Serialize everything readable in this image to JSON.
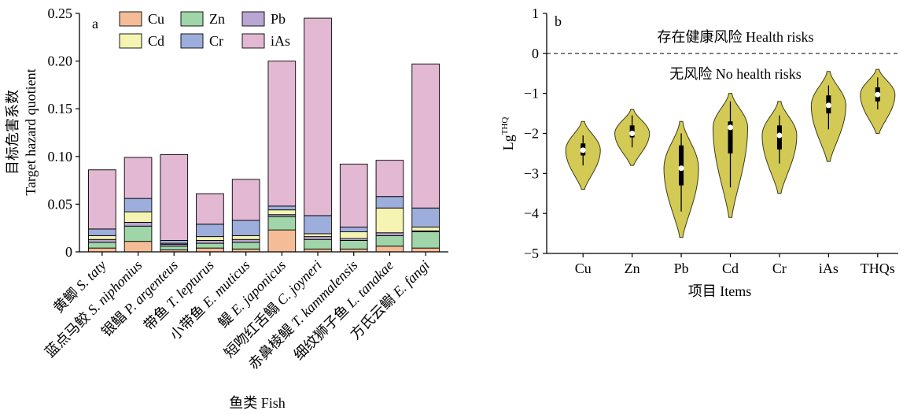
{
  "chart_data": [
    {
      "panel_label": "a",
      "type": "bar",
      "stacked": true,
      "ylabel_cn": "目标危害系数",
      "ylabel_en": "Target hazard quotient",
      "xlabel": "鱼类 Fish",
      "ylim": [
        0,
        0.25
      ],
      "yticks": [
        "0",
        "0.05",
        "0.10",
        "0.15",
        "0.20",
        "0.25"
      ],
      "ytick_values": [
        0,
        0.05,
        0.1,
        0.15,
        0.2,
        0.25
      ],
      "categories": [
        {
          "cn": "黄鲫",
          "sci": "S. taty"
        },
        {
          "cn": "蓝点马鲛",
          "sci": "S. niphonius"
        },
        {
          "cn": "银鲳",
          "sci": "P. argenteus"
        },
        {
          "cn": "带鱼",
          "sci": "T. lepturus"
        },
        {
          "cn": "小带鱼",
          "sci": "E. muticus"
        },
        {
          "cn": "鳀",
          "sci": "E. japonicus"
        },
        {
          "cn": "短吻红舌鳎",
          "sci": "C. joyneri"
        },
        {
          "cn": "赤鼻棱鳀",
          "sci": "T. kammalensis"
        },
        {
          "cn": "细纹狮子鱼",
          "sci": "L. tanakae"
        },
        {
          "cn": "方氏云鳚",
          "sci": "E. fangi"
        }
      ],
      "series": [
        {
          "name": "Cu",
          "color": "#f5bd97",
          "values": [
            0.004,
            0.011,
            0.002,
            0.004,
            0.003,
            0.023,
            0.003,
            0.003,
            0.006,
            0.004
          ]
        },
        {
          "name": "Zn",
          "color": "#9fd5a9",
          "values": [
            0.006,
            0.016,
            0.004,
            0.005,
            0.007,
            0.014,
            0.01,
            0.009,
            0.011,
            0.017
          ]
        },
        {
          "name": "Pb",
          "color": "#b9a6d3",
          "values": [
            0.003,
            0.004,
            0.002,
            0.003,
            0.003,
            0.002,
            0.003,
            0.002,
            0.003,
            0.001
          ]
        },
        {
          "name": "Cd",
          "color": "#f5f4b3",
          "values": [
            0.004,
            0.011,
            0.001,
            0.004,
            0.004,
            0.005,
            0.003,
            0.007,
            0.026,
            0.004
          ]
        },
        {
          "name": "Cr",
          "color": "#9daedc",
          "values": [
            0.007,
            0.014,
            0.003,
            0.013,
            0.016,
            0.004,
            0.019,
            0.005,
            0.012,
            0.02
          ]
        },
        {
          "name": "iAs",
          "color": "#e2b8d2",
          "values": [
            0.062,
            0.043,
            0.09,
            0.032,
            0.043,
            0.152,
            0.207,
            0.066,
            0.038,
            0.151
          ]
        }
      ],
      "legend_position": "top-left",
      "grid": false
    },
    {
      "panel_label": "b",
      "type": "violin",
      "ylabel": "Lg",
      "ylabel_sup": "THQ",
      "xlabel": "项目 Items",
      "ylim": [
        -5,
        1
      ],
      "yticks": [
        "−5",
        "−4",
        "−3",
        "−2",
        "−1",
        "0",
        "1"
      ],
      "ytick_values": [
        -5,
        -4,
        -3,
        -2,
        -1,
        0,
        1
      ],
      "categories": [
        "Cu",
        "Zn",
        "Pb",
        "Cd",
        "Cr",
        "iAs",
        "THQs"
      ],
      "fill_color": "#d3ca56",
      "threshold": 0,
      "annotation_above": "存在健康风险 Health risks",
      "annotation_below": "无风险 No health risks",
      "violins": [
        {
          "name": "Cu",
          "min": -3.4,
          "max": -1.7,
          "q1": -2.55,
          "q3": -2.25,
          "median": -2.42,
          "whisker_low": -2.8,
          "whisker_high": -2.05
        },
        {
          "name": "Zn",
          "min": -2.8,
          "max": -1.4,
          "q1": -2.1,
          "q3": -1.8,
          "median": -2.0,
          "whisker_low": -2.35,
          "whisker_high": -1.55
        },
        {
          "name": "Pb",
          "min": -4.6,
          "max": -1.7,
          "q1": -3.3,
          "q3": -2.3,
          "median": -2.87,
          "whisker_low": -3.95,
          "whisker_high": -2.0
        },
        {
          "name": "Cd",
          "min": -4.1,
          "max": -1.0,
          "q1": -2.5,
          "q3": -1.7,
          "median": -1.85,
          "whisker_low": -3.35,
          "whisker_high": -1.2
        },
        {
          "name": "Cr",
          "min": -3.5,
          "max": -1.2,
          "q1": -2.4,
          "q3": -1.8,
          "median": -2.05,
          "whisker_low": -2.75,
          "whisker_high": -1.55
        },
        {
          "name": "iAs",
          "min": -2.7,
          "max": -0.45,
          "q1": -1.5,
          "q3": -1.05,
          "median": -1.3,
          "whisker_low": -1.9,
          "whisker_high": -0.8
        },
        {
          "name": "THQs",
          "min": -2.0,
          "max": -0.4,
          "q1": -1.2,
          "q3": -0.85,
          "median": -1.03,
          "whisker_low": -1.4,
          "whisker_high": -0.6
        }
      ],
      "grid": false
    }
  ]
}
